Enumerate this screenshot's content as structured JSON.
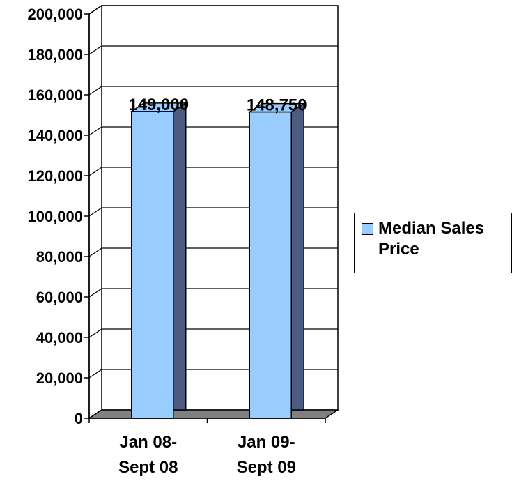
{
  "chart_data": {
    "type": "bar",
    "style": "3d-column",
    "categories": [
      "Jan 08-\nSept 08",
      "Jan 09-\nSept 09"
    ],
    "series": [
      {
        "name": "Median Sales Price",
        "values": [
          149000,
          148750
        ],
        "color": "#99ccff"
      }
    ],
    "data_labels": [
      "149,000",
      "148,750"
    ],
    "y_ticks": [
      "0",
      "20,000",
      "40,000",
      "60,000",
      "80,000",
      "100,000",
      "120,000",
      "140,000",
      "160,000",
      "180,000",
      "200,000"
    ],
    "ylim": [
      0,
      200000
    ],
    "grid": true,
    "legend_position": "right",
    "colors": {
      "bar_side": "#4d5b80",
      "floor": "#808080",
      "grid": "#000000"
    }
  },
  "legend": {
    "label": "Median Sales Price"
  }
}
